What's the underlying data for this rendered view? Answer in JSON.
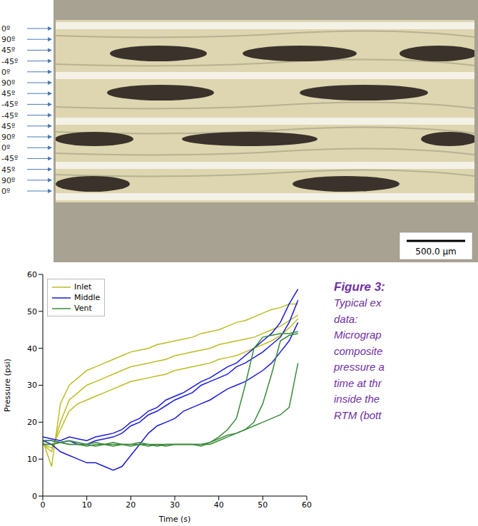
{
  "micrograph": {
    "ply_labels": [
      "0º",
      "90º",
      "45º",
      "-45º",
      "0º",
      "90º",
      "45º",
      "-45º",
      "-45º",
      "45º",
      "90º",
      "0º",
      "-45º",
      "45º",
      "90º",
      "0º"
    ],
    "scale_bar": "500.0 µm"
  },
  "chart_data": {
    "type": "line",
    "x_label": "Time (s)",
    "y_label": "Pressure (psi)",
    "x": [
      0,
      2,
      4,
      6,
      8,
      10,
      12,
      14,
      16,
      18,
      20,
      22,
      24,
      26,
      28,
      30,
      32,
      34,
      36,
      38,
      40,
      42,
      44,
      46,
      48,
      50,
      52,
      54,
      56,
      58
    ],
    "xlim": [
      0,
      60
    ],
    "xticks": [
      0,
      10,
      20,
      30,
      40,
      50,
      60
    ],
    "ylim": [
      0,
      60
    ],
    "yticks": [
      0,
      10,
      20,
      30,
      40,
      50,
      60
    ],
    "legend": "upper left",
    "series": [
      {
        "name": "Inlet",
        "color": "#bcbd22",
        "values": [
          15,
          8,
          25,
          30,
          32,
          34,
          35,
          36,
          37,
          38,
          39,
          39.5,
          40,
          41,
          41.5,
          42,
          42.5,
          43,
          44,
          44.5,
          45,
          46,
          47,
          47.5,
          48.5,
          49.5,
          50.5,
          51,
          52,
          52
        ]
      },
      {
        "name": "Inlet",
        "color": "#bcbd22",
        "values": [
          14,
          12,
          20,
          26,
          28,
          30,
          31,
          32,
          33,
          34,
          35,
          35.5,
          36,
          36.5,
          37,
          38,
          38.5,
          39,
          39.5,
          40,
          41,
          41.5,
          42,
          42.5,
          43,
          44,
          45,
          46,
          47.5,
          49
        ]
      },
      {
        "name": "Inlet",
        "color": "#bcbd22",
        "values": [
          14,
          13,
          18,
          23,
          25,
          26,
          27,
          28,
          29,
          30,
          31,
          31.5,
          32,
          32.5,
          33,
          34,
          34.5,
          35,
          35.5,
          36,
          37,
          37.5,
          38,
          39,
          40,
          41,
          42,
          43.5,
          45.5,
          48
        ]
      },
      {
        "name": "Middle",
        "color": "#1a1ad8",
        "values": [
          16,
          15.5,
          15,
          16,
          15.5,
          15,
          16,
          16.5,
          17,
          18,
          20,
          21,
          23,
          24,
          26,
          27,
          28,
          29.5,
          31,
          32,
          33.5,
          35,
          36,
          38,
          40,
          42,
          44,
          47,
          52,
          56
        ]
      },
      {
        "name": "Middle",
        "color": "#1a1ad8",
        "values": [
          15,
          15,
          14.5,
          15,
          14,
          14,
          15,
          15.5,
          16,
          17,
          19,
          20,
          22,
          23,
          24.5,
          26,
          27,
          28,
          30,
          31,
          32,
          33,
          35,
          36,
          37.5,
          39,
          41,
          43,
          47,
          53
        ]
      },
      {
        "name": "Middle",
        "color": "#1a1ad8",
        "values": [
          15,
          14,
          12,
          11,
          10,
          9,
          9,
          8,
          7,
          8,
          11,
          14,
          17,
          19,
          20,
          21,
          23,
          24,
          25,
          26,
          27.5,
          29,
          30,
          31,
          32.5,
          34,
          36,
          39,
          42,
          47
        ]
      },
      {
        "name": "Vent",
        "color": "#3a8a3a",
        "values": [
          14,
          14,
          14.5,
          14,
          14,
          13.5,
          14,
          14,
          13.5,
          14,
          13.5,
          14,
          13.5,
          14,
          13.5,
          14,
          14,
          14,
          13.5,
          14.5,
          16,
          18,
          21,
          30,
          40,
          43,
          43.5,
          44,
          44,
          44.5
        ]
      },
      {
        "name": "Vent",
        "color": "#3a8a3a",
        "values": [
          15,
          15,
          14.5,
          15,
          14.5,
          14,
          14.5,
          14,
          14.5,
          14,
          14,
          14.5,
          14,
          14,
          14,
          14,
          14,
          14,
          14,
          14.5,
          15.5,
          16.5,
          17,
          18,
          20,
          25,
          33,
          42,
          43.5,
          44
        ]
      },
      {
        "name": "Vent",
        "color": "#3a8a3a",
        "values": [
          14,
          14,
          14.5,
          14,
          14,
          14,
          13.5,
          14,
          14,
          14,
          14,
          14,
          14,
          13.5,
          14,
          14,
          14,
          14,
          14,
          14,
          15,
          16,
          17,
          18,
          19,
          20,
          21,
          22,
          24,
          36
        ]
      }
    ]
  },
  "caption": {
    "heading": "Figure 3:",
    "lines": [
      "Typical ex",
      "data:",
      "Micrograp",
      "composite",
      "pressure a",
      "time at thr",
      "inside the",
      "RTM (bott"
    ]
  }
}
